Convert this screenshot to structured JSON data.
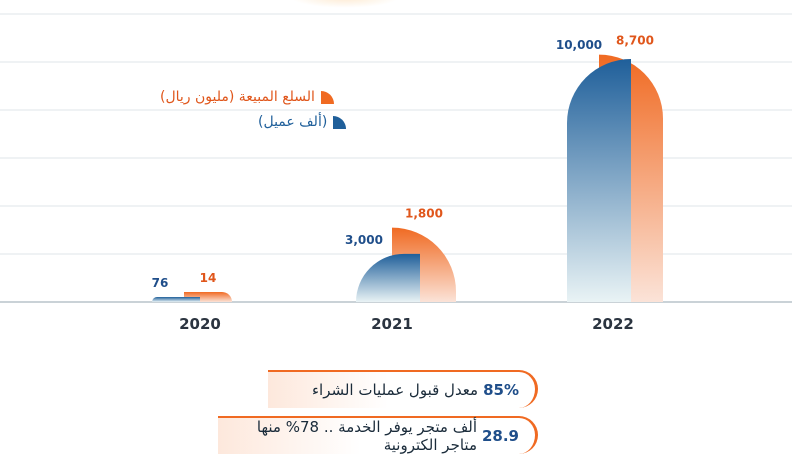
{
  "chart_data": {
    "type": "bar",
    "categories": [
      "2020",
      "2021",
      "2022"
    ],
    "series": [
      {
        "name": "(ألف عميل)",
        "color": "#1f5f9a",
        "values": [
          76,
          3000,
          10000
        ],
        "labels": [
          "76",
          "3,000",
          "10,000"
        ]
      },
      {
        "name": "السلع المبيعة (مليون ريال)",
        "color": "#f06a22",
        "values": [
          14,
          1800,
          8700
        ],
        "labels": [
          "14",
          "1,800",
          "8,700"
        ]
      }
    ],
    "legend_position": "top-left",
    "grid": true
  },
  "facts": [
    {
      "number": "85%",
      "text": "معدل قبول عمليات الشراء"
    },
    {
      "number": "28.9",
      "text": "ألف متجر يوفر الخدمة .. 78% منها متاجر الكترونية"
    }
  ]
}
